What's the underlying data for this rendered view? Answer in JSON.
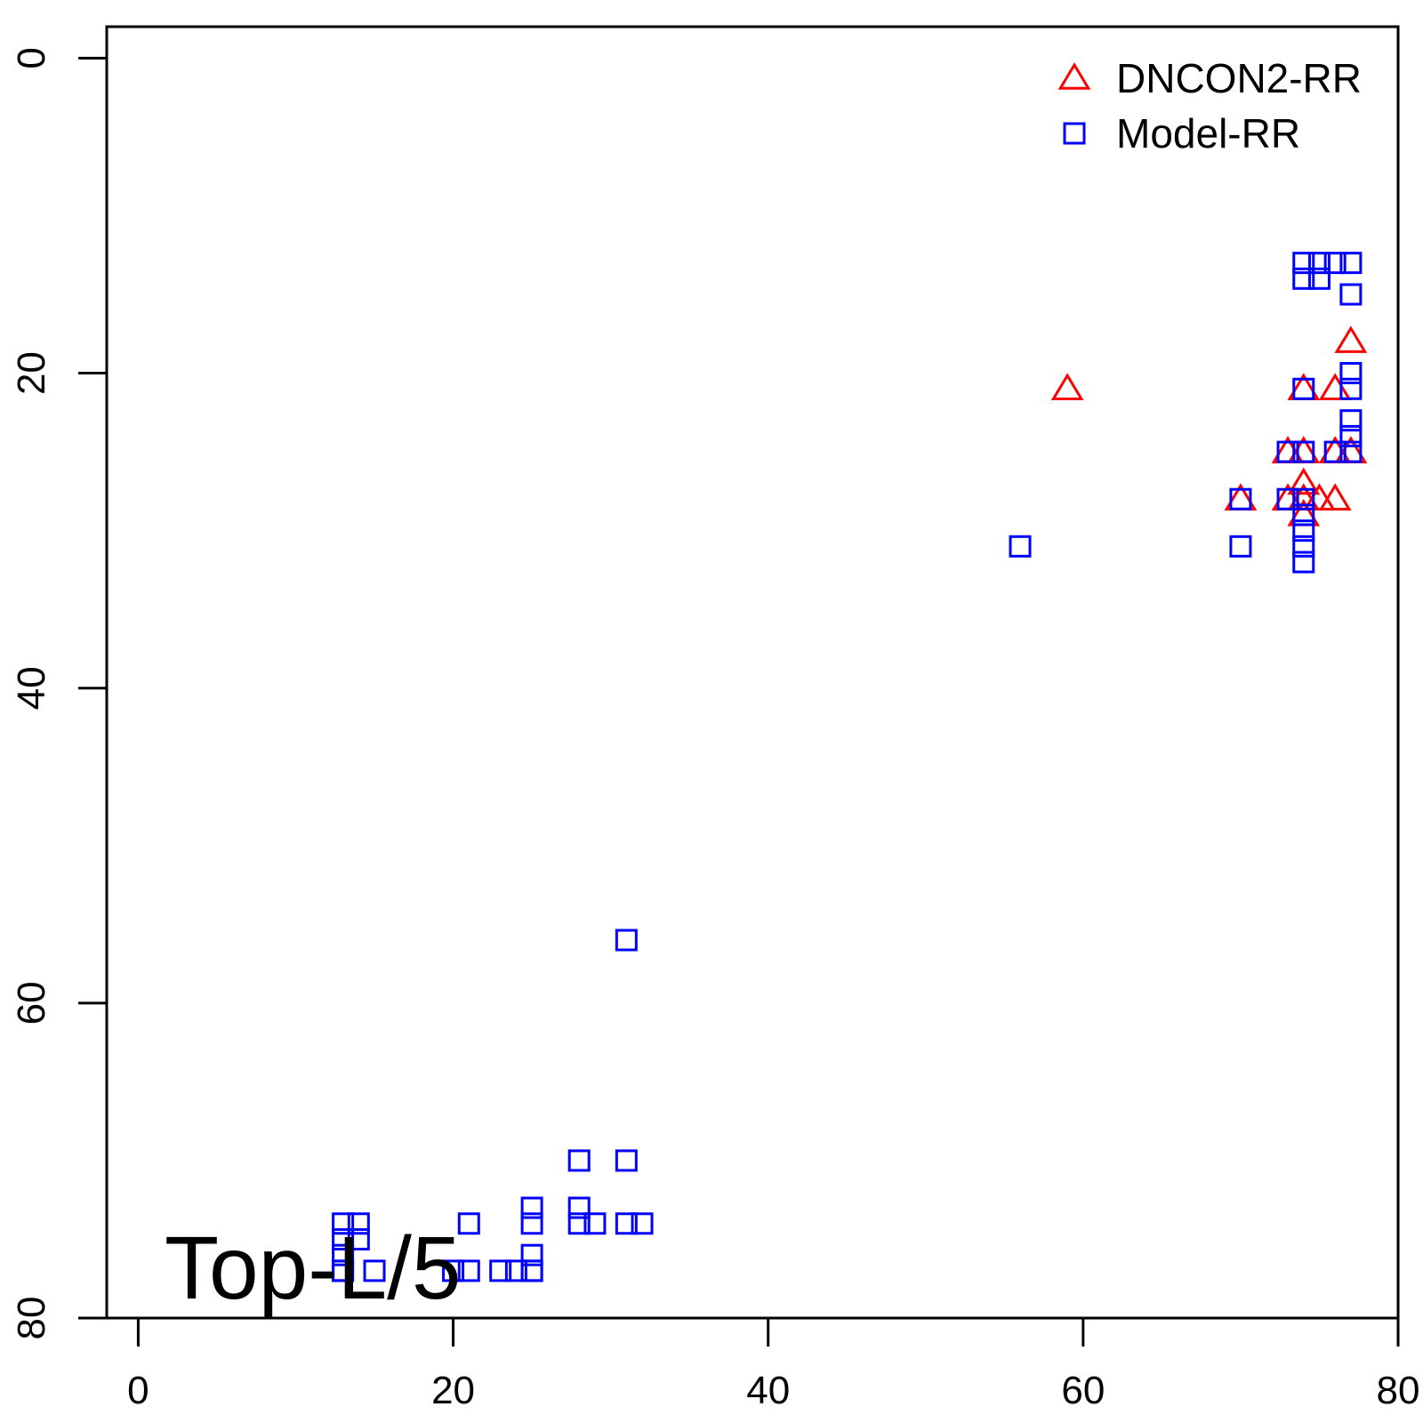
{
  "chart_data": {
    "type": "scatter",
    "title": "",
    "xlabel": "",
    "ylabel": "",
    "xlim": [
      -2,
      80
    ],
    "ylim": [
      80,
      -2
    ],
    "y_reversed": true,
    "xticks": [
      0,
      20,
      40,
      60,
      80
    ],
    "yticks": [
      0,
      20,
      40,
      60,
      80
    ],
    "grid": false,
    "legend_position": "top-right",
    "annotation": "Top-L/5",
    "series": [
      {
        "name": "DNCON2-RR",
        "marker": "triangle",
        "color": "#ff0000",
        "points": [
          [
            59,
            21
          ],
          [
            77,
            18
          ],
          [
            74,
            21
          ],
          [
            76,
            21
          ],
          [
            73,
            25
          ],
          [
            74,
            25
          ],
          [
            76,
            25
          ],
          [
            77,
            25
          ],
          [
            70,
            28
          ],
          [
            73,
            28
          ],
          [
            74,
            28
          ],
          [
            75,
            28
          ],
          [
            76,
            28
          ],
          [
            74,
            27
          ],
          [
            74,
            29
          ]
        ]
      },
      {
        "name": "Model-RR",
        "marker": "square",
        "color": "#0000ff",
        "points": [
          [
            74,
            13
          ],
          [
            75,
            13
          ],
          [
            76,
            13
          ],
          [
            77,
            13
          ],
          [
            74,
            14
          ],
          [
            75,
            14
          ],
          [
            77,
            15
          ],
          [
            77,
            20
          ],
          [
            77,
            21
          ],
          [
            74,
            21
          ],
          [
            77,
            23
          ],
          [
            77,
            24
          ],
          [
            77,
            25
          ],
          [
            73,
            25
          ],
          [
            74,
            25
          ],
          [
            76,
            25
          ],
          [
            70,
            28
          ],
          [
            73,
            28
          ],
          [
            74,
            28
          ],
          [
            74,
            29
          ],
          [
            74,
            30
          ],
          [
            56,
            31
          ],
          [
            70,
            31
          ],
          [
            74,
            31
          ],
          [
            74,
            32
          ],
          [
            31,
            56
          ],
          [
            28,
            70
          ],
          [
            31,
            70
          ],
          [
            25,
            73
          ],
          [
            28,
            73
          ],
          [
            25,
            74
          ],
          [
            28,
            74
          ],
          [
            29,
            74
          ],
          [
            31,
            74
          ],
          [
            32,
            74
          ],
          [
            13,
            74
          ],
          [
            14,
            74
          ],
          [
            21,
            74
          ],
          [
            13,
            75
          ],
          [
            14,
            75
          ],
          [
            13,
            76
          ],
          [
            13,
            77
          ],
          [
            25,
            76
          ],
          [
            25,
            77
          ],
          [
            13,
            77
          ],
          [
            15,
            77
          ],
          [
            20,
            77
          ],
          [
            21,
            77
          ],
          [
            23,
            77
          ],
          [
            24,
            77
          ],
          [
            25,
            77
          ]
        ]
      }
    ]
  }
}
